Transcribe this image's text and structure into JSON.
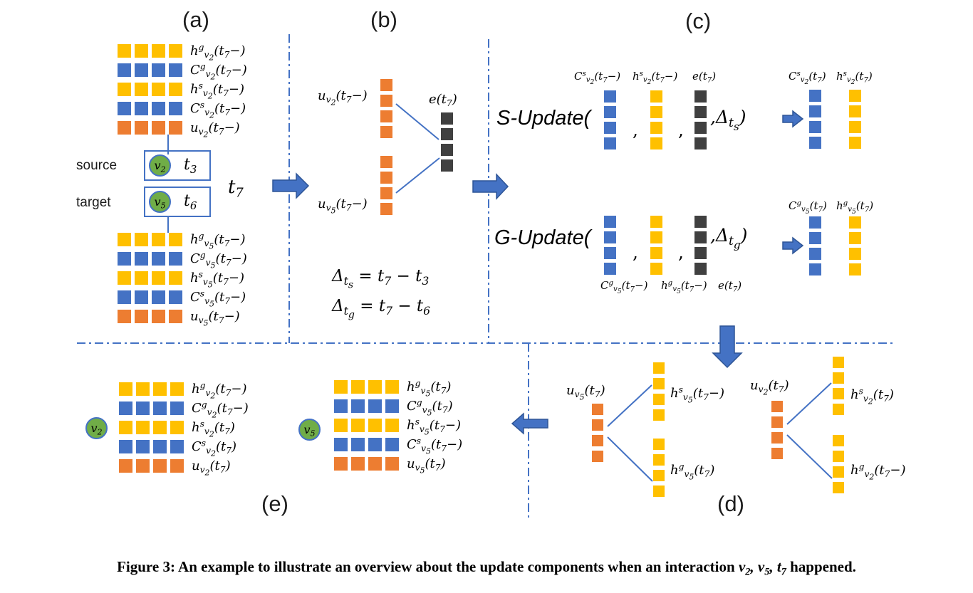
{
  "colors": {
    "yellow": "#FFC000",
    "blue": "#4472C4",
    "orange": "#ED7D31",
    "dark": "#404040",
    "green": "#70AD47",
    "arrow": "#4472C4",
    "arrow_border": "#2E5596",
    "divider": "#4472C4",
    "connector": "#4472C4"
  },
  "panels": {
    "a": {
      "label": "(a)",
      "matrix_v2": {
        "rows": [
          {
            "n": 4,
            "color": "yellow",
            "label": "h^{g}_{v_{2}}(t_{7}−)"
          },
          {
            "n": 4,
            "color": "blue",
            "label": "C^{g}_{v_{2}}(t_{7}−)"
          },
          {
            "n": 4,
            "color": "yellow",
            "label": "h^{s}_{v_{2}}(t_{7}−)"
          },
          {
            "n": 4,
            "color": "blue",
            "label": "C^{s}_{v_{2}}(t_{7}−)"
          },
          {
            "n": 4,
            "color": "orange",
            "label": "u_{v_{2}}(t_{7}−)"
          }
        ]
      },
      "source_label": "source",
      "target_label": "target",
      "source_node": "v_{2}",
      "source_time": "t_{3}",
      "target_node": "v_{5}",
      "target_time": "t_{6}",
      "time_label": "t_{7}",
      "matrix_v5": {
        "rows": [
          {
            "n": 4,
            "color": "yellow",
            "label": "h^{g}_{v_{5}}(t_{7}−)"
          },
          {
            "n": 4,
            "color": "blue",
            "label": "C^{g}_{v_{5}}(t_{7}−)"
          },
          {
            "n": 4,
            "color": "yellow",
            "label": "h^{s}_{v_{5}}(t_{7}−)"
          },
          {
            "n": 4,
            "color": "blue",
            "label": "C^{s}_{v_{5}}(t_{7}−)"
          },
          {
            "n": 4,
            "color": "orange",
            "label": "u_{v_{5}}(t_{7}−)"
          }
        ]
      }
    },
    "b": {
      "label": "(b)",
      "u_v2_label": "u_{v_{2}}(t_{7}−)",
      "u_v5_label": "u_{v_{5}}(t_{7}−)",
      "e_label": "e(t_{7})",
      "u_v2": {
        "n": 4,
        "color": "orange"
      },
      "u_v5": {
        "n": 4,
        "color": "orange"
      },
      "e": {
        "n": 4,
        "color": "dark"
      },
      "eq1": "Δ_{t_{s}} = t_{7} − t_{3}",
      "eq2": "Δ_{t_{g}} = t_{7} − t_{6}"
    },
    "c": {
      "label": "(c)",
      "comma": ",",
      "s_row": {
        "fn": "S-Update(",
        "arg_labels": [
          "C^{s}_{v_{2}}(t_{7}−)",
          "h^{s}_{v_{2}}(t_{7}−)",
          "e(t_{7})"
        ],
        "args": [
          {
            "n": 4,
            "color": "blue"
          },
          {
            "n": 4,
            "color": "yellow"
          },
          {
            "n": 4,
            "color": "dark"
          }
        ],
        "delta_arg": ",Δ_{t_{s}})",
        "out_labels": [
          "C^{s}_{v_{2}}(t_{7})",
          "h^{s}_{v_{2}}(t_{7})"
        ],
        "outs": [
          {
            "n": 4,
            "color": "blue"
          },
          {
            "n": 4,
            "color": "yellow"
          }
        ]
      },
      "g_row": {
        "fn": "G-Update(",
        "arg_labels": [
          "C^{g}_{v_{5}}(t_{7}−)",
          "h^{g}_{v_{5}}(t_{7}−)",
          "e(t_{7})"
        ],
        "args": [
          {
            "n": 4,
            "color": "blue"
          },
          {
            "n": 4,
            "color": "yellow"
          },
          {
            "n": 4,
            "color": "dark"
          }
        ],
        "delta_arg": ",Δ_{t_{g}})",
        "out_labels": [
          "C^{g}_{v_{5}}(t_{7})",
          "h^{g}_{v_{5}}(t_{7})"
        ],
        "outs": [
          {
            "n": 4,
            "color": "blue"
          },
          {
            "n": 4,
            "color": "yellow"
          }
        ]
      }
    },
    "d": {
      "label": "(d)",
      "left": {
        "u_label": "u_{v_{5}}(t_{7})",
        "u": {
          "n": 4,
          "color": "orange"
        },
        "top": {
          "n": 4,
          "color": "yellow"
        },
        "bottom": {
          "n": 4,
          "color": "yellow"
        },
        "top_label": "h^{s}_{v_{5}}(t_{7}−)",
        "bottom_label": "h^{g}_{v_{5}}(t_{7})"
      },
      "right": {
        "u_label": "u_{v_{2}}(t_{7})",
        "u": {
          "n": 4,
          "color": "orange"
        },
        "top": {
          "n": 4,
          "color": "yellow"
        },
        "bottom": {
          "n": 4,
          "color": "yellow"
        },
        "top_label": "h^{s}_{v_{2}}(t_{7})",
        "bottom_label": "h^{g}_{v_{2}}(t_{7}−)"
      }
    },
    "e": {
      "label": "(e)",
      "v2": {
        "node": "v_{2}",
        "rows": [
          {
            "n": 4,
            "color": "yellow",
            "label": "h^{g}_{v_{2}}(t_{7}−)"
          },
          {
            "n": 4,
            "color": "blue",
            "label": "C^{g}_{v_{2}}(t_{7}−)"
          },
          {
            "n": 4,
            "color": "yellow",
            "label": "h^{s}_{v_{2}}(t_{7})"
          },
          {
            "n": 4,
            "color": "blue",
            "label": "C^{s}_{v_{2}}(t_{7})"
          },
          {
            "n": 4,
            "color": "orange",
            "label": "u_{v_{2}}(t_{7})"
          }
        ]
      },
      "v5": {
        "node": "v_{5}",
        "rows": [
          {
            "n": 4,
            "color": "yellow",
            "label": "h^{g}_{v_{5}}(t_{7})"
          },
          {
            "n": 4,
            "color": "blue",
            "label": "C^{g}_{v_{5}}(t_{7})"
          },
          {
            "n": 4,
            "color": "yellow",
            "label": "h^{s}_{v_{5}}(t_{7}−)"
          },
          {
            "n": 4,
            "color": "blue",
            "label": "C^{s}_{v_{5}}(t_{7}−)"
          },
          {
            "n": 4,
            "color": "orange",
            "label": "u_{v_{5}}(t_{7})"
          }
        ]
      }
    }
  },
  "caption": {
    "prefix": "Figure 3: An example to illustrate an overview about the update components when an interaction ",
    "math": "v_{2}, v_{5}, t_{7}",
    "suffix": " happened."
  }
}
